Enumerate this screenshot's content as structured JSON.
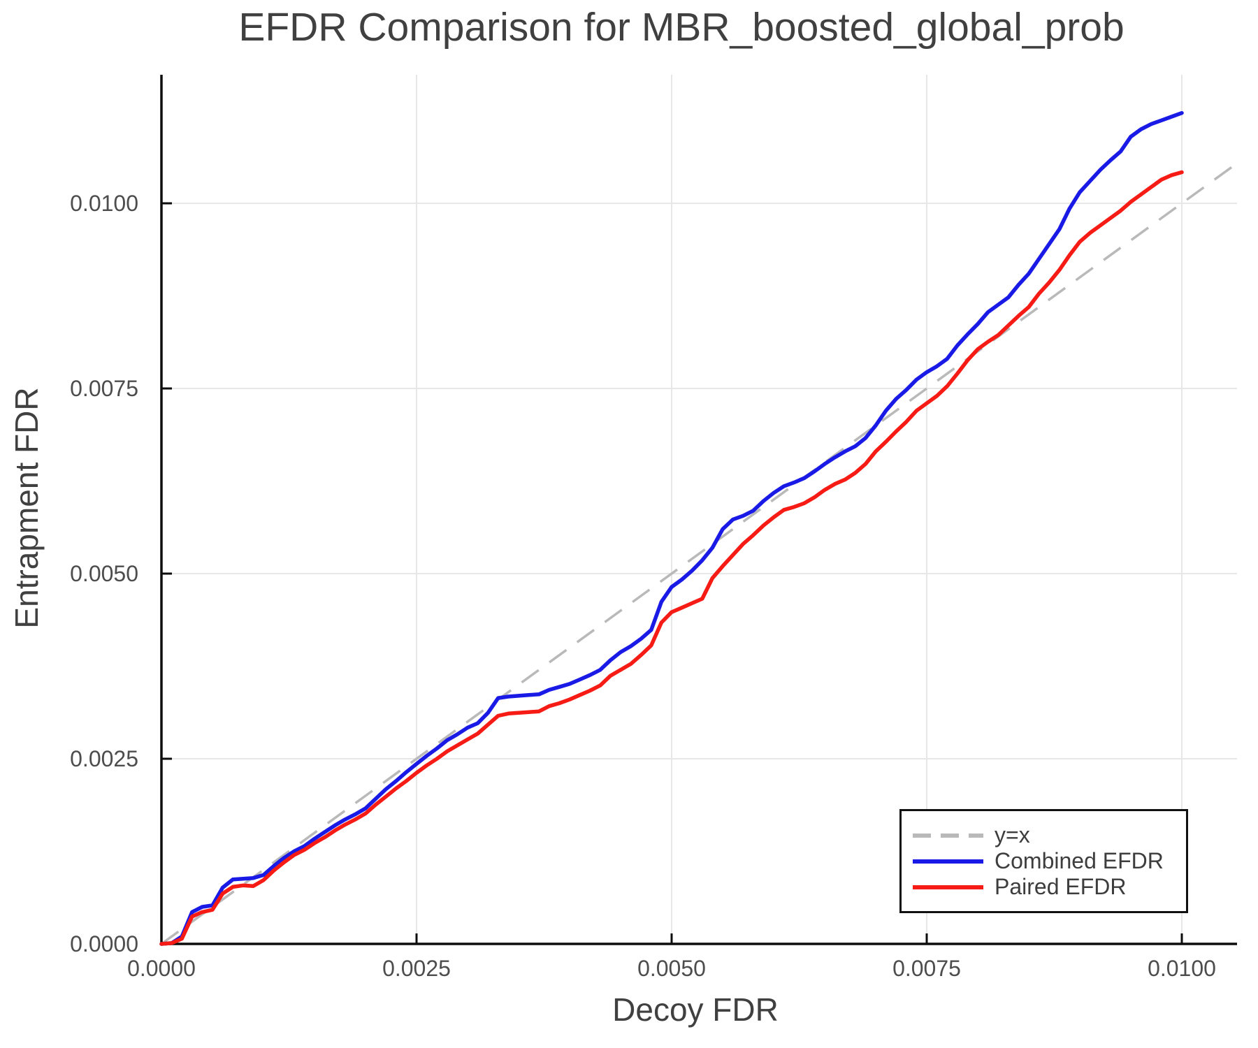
{
  "chart_data": {
    "type": "line",
    "title": "EFDR Comparison for MBR_boosted_global_prob",
    "xlabel": "Decoy FDR",
    "ylabel": "Entrapment FDR",
    "xlim": [
      0,
      0.010541
    ],
    "ylim": [
      0,
      0.011736
    ],
    "grid": true,
    "x_ticks": {
      "values": [
        0,
        0.0025,
        0.005,
        0.0075,
        0.01
      ],
      "labels": [
        "0.0000",
        "0.0025",
        "0.0050",
        "0.0075",
        "0.0100"
      ]
    },
    "y_ticks": {
      "values": [
        0,
        0.0025,
        0.005,
        0.0075,
        0.01
      ],
      "labels": [
        "0.0000",
        "0.0025",
        "0.0050",
        "0.0075",
        "0.0100"
      ]
    },
    "identity_line": {
      "name": "y=x",
      "color": "#b9b9b9",
      "style": "dashed",
      "x": [
        0,
        0.010541
      ],
      "y": [
        0,
        0.010541
      ]
    },
    "x": [
      0,
      0.0001,
      0.0002,
      0.0003,
      0.0004,
      0.0005,
      0.0006,
      0.0007,
      0.0008,
      0.0009,
      0.001,
      0.0011,
      0.0012,
      0.0013,
      0.0014,
      0.0015,
      0.0016,
      0.0017,
      0.0018,
      0.0019,
      0.002,
      0.0021,
      0.0022,
      0.0023,
      0.0024,
      0.0025,
      0.0026,
      0.0027,
      0.0028,
      0.0029,
      0.003,
      0.0031,
      0.0032,
      0.0033,
      0.0034,
      0.0035,
      0.0036,
      0.0037,
      0.0038,
      0.0039,
      0.004,
      0.0041,
      0.0042,
      0.0043,
      0.0044,
      0.0045,
      0.0046,
      0.0047,
      0.0048,
      0.0049,
      0.005,
      0.0051,
      0.0052,
      0.0053,
      0.0054,
      0.0055,
      0.0056,
      0.0057,
      0.0058,
      0.0059,
      0.006,
      0.0061,
      0.0062,
      0.0063,
      0.0064,
      0.0065,
      0.0066,
      0.0067,
      0.0068,
      0.0069,
      0.007,
      0.0071,
      0.0072,
      0.0073,
      0.0074,
      0.0075,
      0.0076,
      0.0077,
      0.0078,
      0.0079,
      0.008,
      0.0081,
      0.0082,
      0.0083,
      0.0084,
      0.0085,
      0.0086,
      0.0087,
      0.0088,
      0.0089,
      0.009,
      0.0091,
      0.0092,
      0.0093,
      0.0094,
      0.0095,
      0.0096,
      0.0097,
      0.0098,
      0.0099,
      0.01
    ],
    "series": [
      {
        "name": "Combined EFDR",
        "color": "#1a1ae6",
        "y": [
          0,
          1e-05,
          0.0001,
          0.00043,
          0.0005,
          0.00052,
          0.00076,
          0.00087,
          0.00088,
          0.00089,
          0.00093,
          0.00105,
          0.00116,
          0.00125,
          0.00132,
          0.00142,
          0.00151,
          0.0016,
          0.00168,
          0.00175,
          0.00183,
          0.00196,
          0.00209,
          0.0022,
          0.00232,
          0.00243,
          0.00254,
          0.00264,
          0.00275,
          0.00283,
          0.00292,
          0.00298,
          0.00312,
          0.00332,
          0.00334,
          0.00335,
          0.00336,
          0.00337,
          0.00343,
          0.00347,
          0.00351,
          0.00357,
          0.00363,
          0.0037,
          0.00383,
          0.00394,
          0.00402,
          0.00412,
          0.00424,
          0.00462,
          0.00482,
          0.00492,
          0.00504,
          0.00518,
          0.00535,
          0.0056,
          0.00573,
          0.00578,
          0.00585,
          0.00598,
          0.00609,
          0.00618,
          0.00623,
          0.00629,
          0.00638,
          0.00648,
          0.00657,
          0.00665,
          0.00672,
          0.00683,
          0.007,
          0.0072,
          0.00736,
          0.00748,
          0.00762,
          0.00772,
          0.0078,
          0.0079,
          0.00808,
          0.00823,
          0.00837,
          0.00853,
          0.00863,
          0.00873,
          0.0089,
          0.00905,
          0.00925,
          0.00945,
          0.00965,
          0.00993,
          0.01015,
          0.0103,
          0.01045,
          0.01058,
          0.0107,
          0.0109,
          0.011,
          0.01107,
          0.01112,
          0.01117,
          0.01122
        ]
      },
      {
        "name": "Paired EFDR",
        "color": "#f71b15",
        "y": [
          0,
          1e-05,
          7e-05,
          0.00037,
          0.00043,
          0.00046,
          0.00068,
          0.00077,
          0.00079,
          0.00078,
          0.00086,
          0.00099,
          0.0011,
          0.0012,
          0.00127,
          0.00136,
          0.00144,
          0.00153,
          0.00161,
          0.00168,
          0.00176,
          0.00188,
          0.00199,
          0.0021,
          0.0022,
          0.00231,
          0.00241,
          0.0025,
          0.0026,
          0.00268,
          0.00276,
          0.00284,
          0.00296,
          0.00308,
          0.00311,
          0.00312,
          0.00313,
          0.00314,
          0.00321,
          0.00325,
          0.0033,
          0.00336,
          0.00342,
          0.00349,
          0.00362,
          0.0037,
          0.00378,
          0.0039,
          0.00403,
          0.00434,
          0.00448,
          0.00454,
          0.0046,
          0.00466,
          0.00494,
          0.0051,
          0.00525,
          0.0054,
          0.00552,
          0.00565,
          0.00576,
          0.00586,
          0.0059,
          0.00595,
          0.00603,
          0.00613,
          0.00621,
          0.00627,
          0.00636,
          0.00648,
          0.00665,
          0.00678,
          0.00692,
          0.00705,
          0.0072,
          0.0073,
          0.0074,
          0.00753,
          0.0077,
          0.00788,
          0.00803,
          0.00813,
          0.00822,
          0.00835,
          0.00848,
          0.0086,
          0.00878,
          0.00893,
          0.0091,
          0.0093,
          0.00948,
          0.0096,
          0.0097,
          0.0098,
          0.0099,
          0.01002,
          0.01012,
          0.01022,
          0.01032,
          0.01038,
          0.01042
        ]
      }
    ],
    "legend": {
      "position": "bottom-right",
      "items": [
        {
          "label": "y=x",
          "color": "#b9b9b9",
          "dashed": true
        },
        {
          "label": "Combined EFDR",
          "color": "#1a1ae6",
          "dashed": false
        },
        {
          "label": "Paired EFDR",
          "color": "#f71b15",
          "dashed": false
        }
      ]
    },
    "colors": {
      "grid": "#e7e7e7",
      "axis": "#0d0d0d",
      "tick_label": "#4d4d4d",
      "title_text": "#404040"
    }
  }
}
